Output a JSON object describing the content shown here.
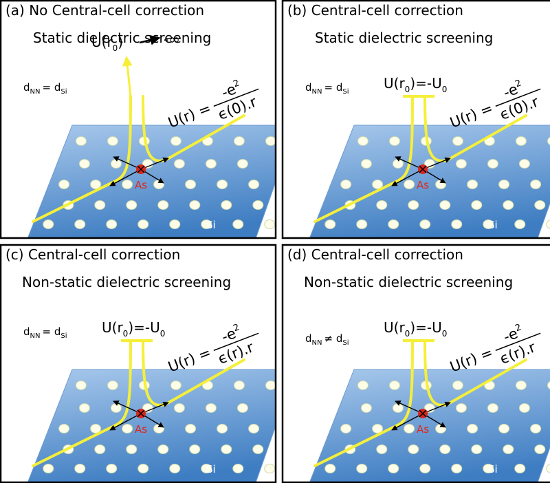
{
  "panels": [
    {
      "title": "(a) No Central-cell correction",
      "subtitle": "Static dielectric screening",
      "potential": {
        "text": "U(r",
        "sub": "0",
        "tail": ")",
        "limit": "-∞"
      },
      "formula": {
        "lhs": "U(r) =",
        "numerator": "-e",
        "power": "2",
        "denominator": "ϵ(0).r"
      },
      "distance": {
        "d": "d",
        "d_sub": "NN",
        "relation": "= d",
        "rel_sub": "Si"
      },
      "impurity": "As",
      "host": "Si"
    },
    {
      "title": "(b) Central-cell correction",
      "subtitle": "Static dielectric screening",
      "potential": {
        "text": "U(r",
        "sub": "0",
        "tail": ")=-U",
        "sub2": "0"
      },
      "formula": {
        "lhs": "U(r) =",
        "numerator": "-e",
        "power": "2",
        "denominator": "ϵ(0).r"
      },
      "distance": {
        "d": "d",
        "d_sub": "NN",
        "relation": "= d",
        "rel_sub": "Si"
      },
      "impurity": "As",
      "host": "Si"
    },
    {
      "title": "(c) Central-cell correction",
      "subtitle": "Non-static dielectric screening",
      "potential": {
        "text": "U(r",
        "sub": "0",
        "tail": ")=-U",
        "sub2": "0"
      },
      "formula": {
        "lhs": "U(r) =",
        "numerator": "-e",
        "power": "2",
        "denominator": "ϵ(r).r"
      },
      "distance": {
        "d": "d",
        "d_sub": "NN",
        "relation": "= d",
        "rel_sub": "Si"
      },
      "impurity": "As",
      "host": "Si"
    },
    {
      "title": "(d) Central-cell correction",
      "subtitle": "Non-static dielectric screening",
      "potential": {
        "text": "U(r",
        "sub": "0",
        "tail": ")=-U",
        "sub2": "0"
      },
      "formula": {
        "lhs": "U(r) =",
        "numerator": "-e",
        "power": "2",
        "denominator": "ϵ(r).r"
      },
      "distance": {
        "d": "d",
        "d_sub": "NN",
        "relation": "≠ d",
        "rel_sub": "Si"
      },
      "impurity": "As",
      "host": "Si"
    }
  ]
}
